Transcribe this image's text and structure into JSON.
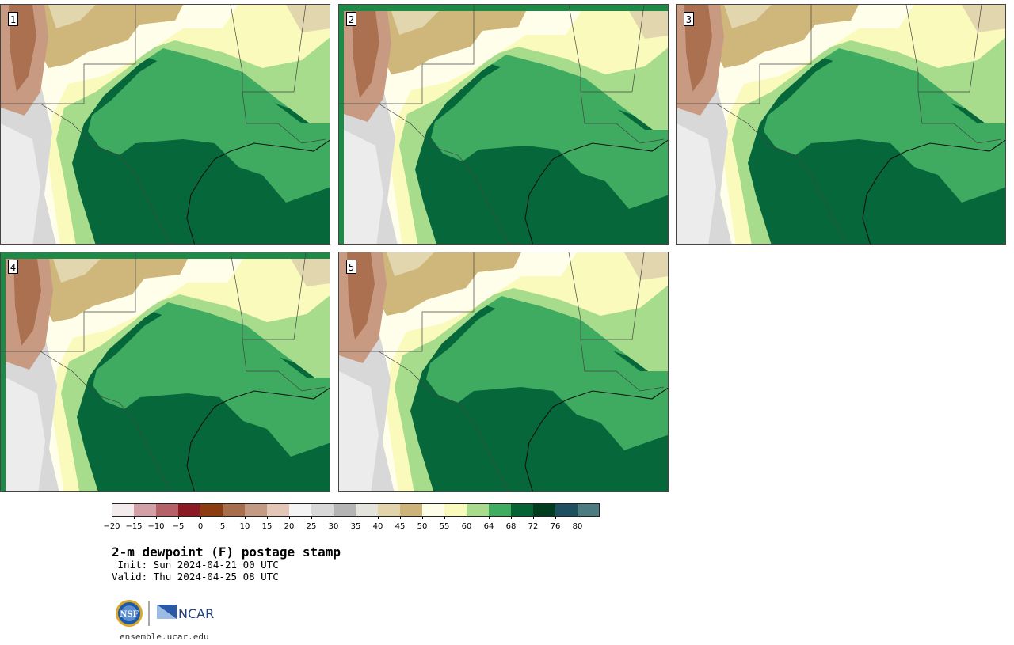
{
  "panels": [
    {
      "label": "1"
    },
    {
      "label": "2"
    },
    {
      "label": "3"
    },
    {
      "label": "4"
    },
    {
      "label": "5"
    }
  ],
  "colorbar": {
    "ticks": [
      "−20",
      "−15",
      "−10",
      "−5",
      "0",
      "5",
      "10",
      "15",
      "20",
      "25",
      "30",
      "35",
      "40",
      "45",
      "50",
      "55",
      "60",
      "64",
      "68",
      "72",
      "76",
      "80"
    ],
    "colors": [
      "#f4ecec",
      "#d4a0a8",
      "#b66068",
      "#8c1a24",
      "#8c3c0e",
      "#a86e4c",
      "#c49a82",
      "#e4c6b8",
      "#f4f4f4",
      "#d8d8d8",
      "#b4b4b4",
      "#e4e4dc",
      "#e2d4aa",
      "#ccb478",
      "#fefee8",
      "#fafaba",
      "#a8dc8c",
      "#40ac60",
      "#066434",
      "#003c20",
      "#1e5060",
      "#4c7c80"
    ]
  },
  "title": "2-m dewpoint (F) postage stamp",
  "init": " Init: Sun 2024-04-21 00 UTC",
  "valid": "Valid: Thu 2024-04-25 08 UTC",
  "logos": {
    "nsf": "NSF",
    "ncar": "NCAR"
  },
  "url": "ensemble.ucar.edu"
}
